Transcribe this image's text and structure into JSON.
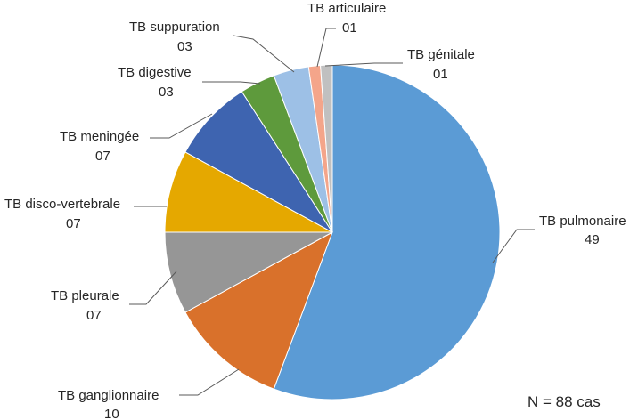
{
  "chart_data": {
    "type": "pie",
    "note": "N = 88 cas",
    "slices": [
      {
        "name": "TB pulmonaire",
        "value": 49,
        "label": "49",
        "color": "#5B9BD5"
      },
      {
        "name": "TB ganglionnaire",
        "value": 10,
        "label": "10",
        "color": "#D9712B"
      },
      {
        "name": "TB pleurale",
        "value": 7,
        "label": "07",
        "color": "#969696"
      },
      {
        "name": "TB disco-vertebrale",
        "value": 7,
        "label": "07",
        "color": "#E5A800"
      },
      {
        "name": "TB meningée",
        "value": 7,
        "label": "07",
        "color": "#3E64B0"
      },
      {
        "name": "TB digestive",
        "value": 3,
        "label": "03",
        "color": "#5E9A3C"
      },
      {
        "name": "TB suppuration",
        "value": 3,
        "label": "03",
        "color": "#9DC0E6"
      },
      {
        "name": "TB articulaire",
        "value": 1,
        "label": "01",
        "color": "#F4A58A"
      },
      {
        "name": "TB génitale",
        "value": 1,
        "label": "01",
        "color": "#C0C0C0"
      }
    ]
  }
}
